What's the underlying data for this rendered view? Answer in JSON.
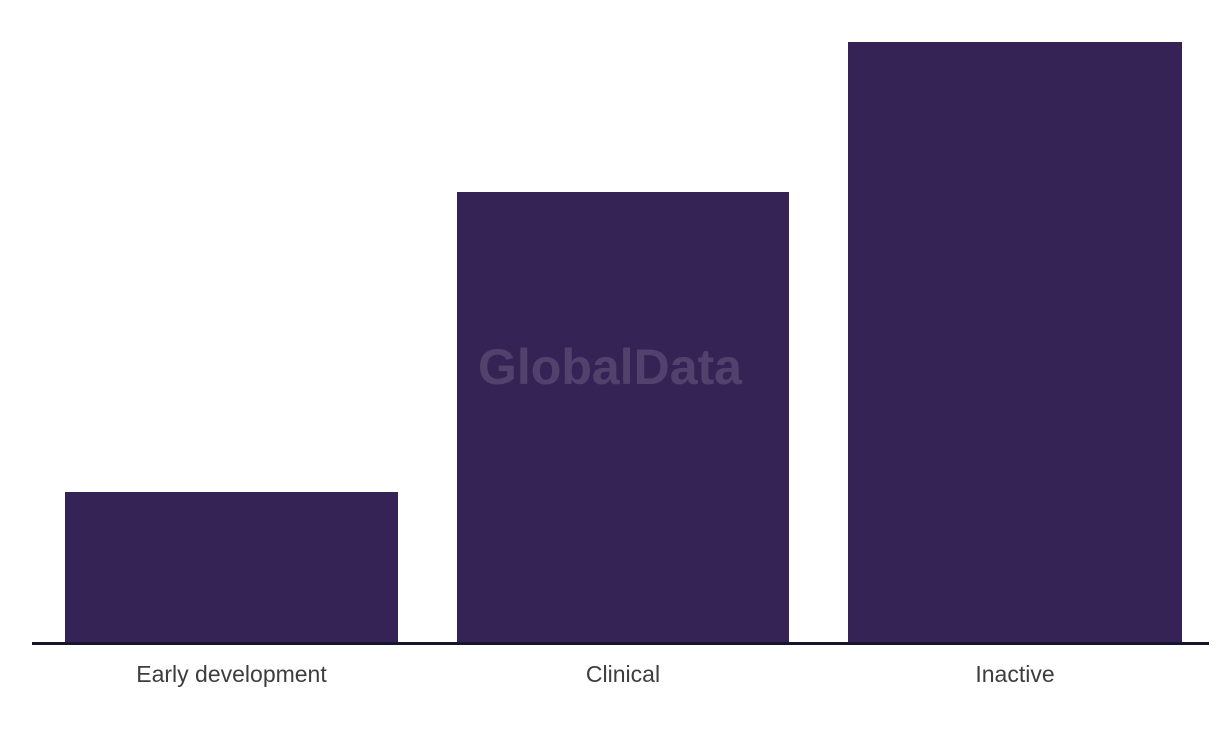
{
  "chart_data": {
    "type": "bar",
    "title": "",
    "xlabel": "",
    "ylabel": "",
    "categories": [
      "Early development",
      "Clinical",
      "Inactive"
    ],
    "values": [
      150,
      450,
      600
    ],
    "value_axis_visible": false,
    "grid": false,
    "legend": false
  },
  "watermark": {
    "text": "GlobalData"
  },
  "colors": {
    "background": "#FFFFFF",
    "bar": "#352355",
    "axis_line": "#16152F",
    "label_text": "#3D3D3D",
    "watermark": "rgba(255,255,255,0.14)"
  }
}
